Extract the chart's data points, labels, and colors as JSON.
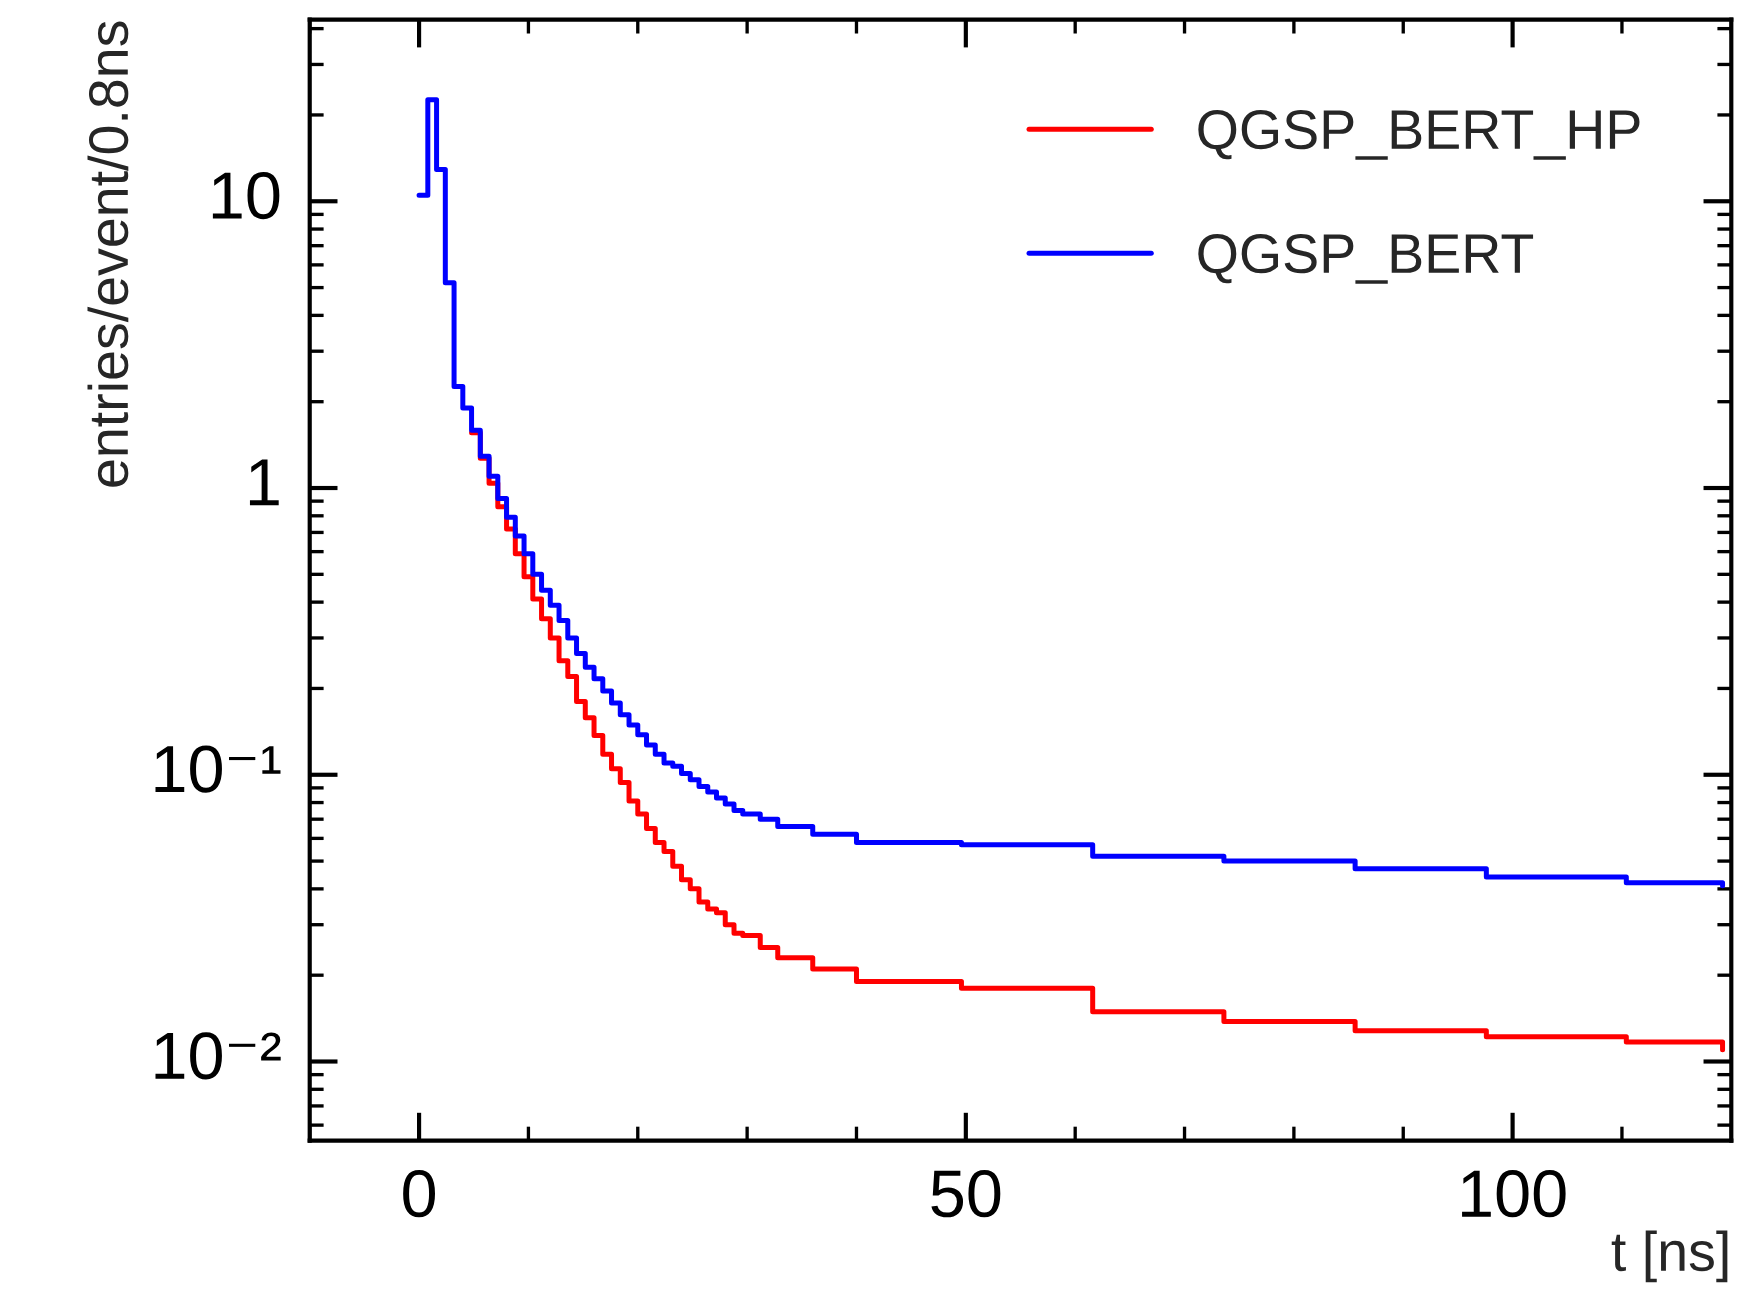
{
  "chart_data": {
    "type": "step",
    "xlabel": "t [ns]",
    "ylabel": "entries/event/0.8ns",
    "log": "y",
    "xlim": [
      -10,
      120
    ],
    "xticks": [
      0,
      50,
      100
    ],
    "ylim": [
      0.0053,
      43
    ],
    "yticks": [
      {
        "value": 0.01,
        "label": "10⁻²"
      },
      {
        "value": 0.1,
        "label": "10⁻¹"
      },
      1,
      10
    ],
    "legend": "top right",
    "grid": false,
    "line_style": "solid",
    "marker": "none",
    "series": [
      {
        "name": "QGSP_BERT_HP",
        "color": "#ff0000",
        "x": [
          4.8,
          5.6,
          6.4,
          7.2,
          8.0,
          8.8,
          9.6,
          10.4,
          11.2,
          12.0,
          12.8,
          13.6,
          14.4,
          15.2,
          16.0,
          16.8,
          17.6,
          18.4,
          19.2,
          20.0,
          20.8,
          21.6,
          22.4,
          23.2,
          24.0,
          24.8,
          25.6,
          26.4,
          27.2,
          28.0,
          28.8,
          29.6,
          31.2,
          32.8,
          36.0,
          40.0,
          49.6,
          61.6,
          73.6,
          85.6,
          97.6,
          110.4,
          119.2
        ],
        "values": [
          1.56,
          1.27,
          1.04,
          0.86,
          0.72,
          0.59,
          0.49,
          0.41,
          0.35,
          0.3,
          0.25,
          0.22,
          0.18,
          0.158,
          0.137,
          0.118,
          0.105,
          0.094,
          0.081,
          0.073,
          0.065,
          0.058,
          0.054,
          0.048,
          0.043,
          0.04,
          0.036,
          0.034,
          0.033,
          0.03,
          0.028,
          0.0275,
          0.025,
          0.023,
          0.021,
          0.019,
          0.018,
          0.0149,
          0.0138,
          0.0128,
          0.0122,
          0.0117,
          0.011
        ]
      },
      {
        "name": "QGSP_BERT",
        "color": "#0000ff",
        "x": [
          0,
          0.8,
          1.6,
          2.4,
          3.2,
          4.0,
          4.8,
          5.6,
          6.4,
          7.2,
          8.0,
          8.8,
          9.6,
          10.4,
          11.2,
          12.0,
          12.8,
          13.6,
          14.4,
          15.2,
          16.0,
          16.8,
          17.6,
          18.4,
          19.2,
          20.0,
          20.8,
          21.6,
          22.4,
          23.2,
          24.0,
          24.8,
          25.6,
          26.4,
          27.2,
          28.0,
          28.8,
          29.6,
          31.2,
          32.8,
          36.0,
          40.0,
          49.6,
          61.6,
          73.6,
          85.6,
          97.6,
          110.4,
          119.2
        ],
        "values": [
          10.5,
          22.6,
          12.9,
          5.2,
          2.26,
          1.9,
          1.59,
          1.29,
          1.1,
          0.92,
          0.79,
          0.68,
          0.59,
          0.5,
          0.44,
          0.39,
          0.345,
          0.3,
          0.265,
          0.237,
          0.216,
          0.196,
          0.178,
          0.162,
          0.149,
          0.138,
          0.127,
          0.118,
          0.11,
          0.107,
          0.101,
          0.096,
          0.091,
          0.087,
          0.083,
          0.079,
          0.075,
          0.073,
          0.07,
          0.066,
          0.062,
          0.058,
          0.057,
          0.052,
          0.05,
          0.047,
          0.044,
          0.042,
          0.041
        ]
      }
    ]
  }
}
